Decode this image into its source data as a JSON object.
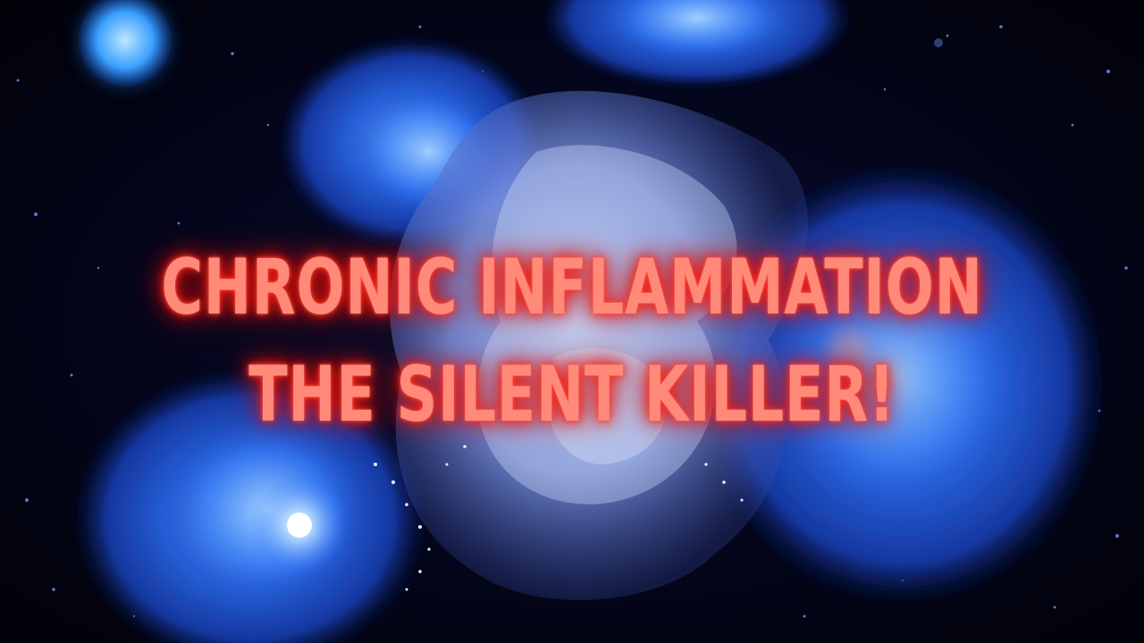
{
  "thumbnail": {
    "headline_line1": "CHRONIC INFLAMMATION",
    "headline_line2": "THE SILENT KILLER!",
    "text_color": "#ff8a7a",
    "glow_color": "#ff2a1a",
    "background_color": "#02030d",
    "cell_color": "#2f7bff"
  }
}
